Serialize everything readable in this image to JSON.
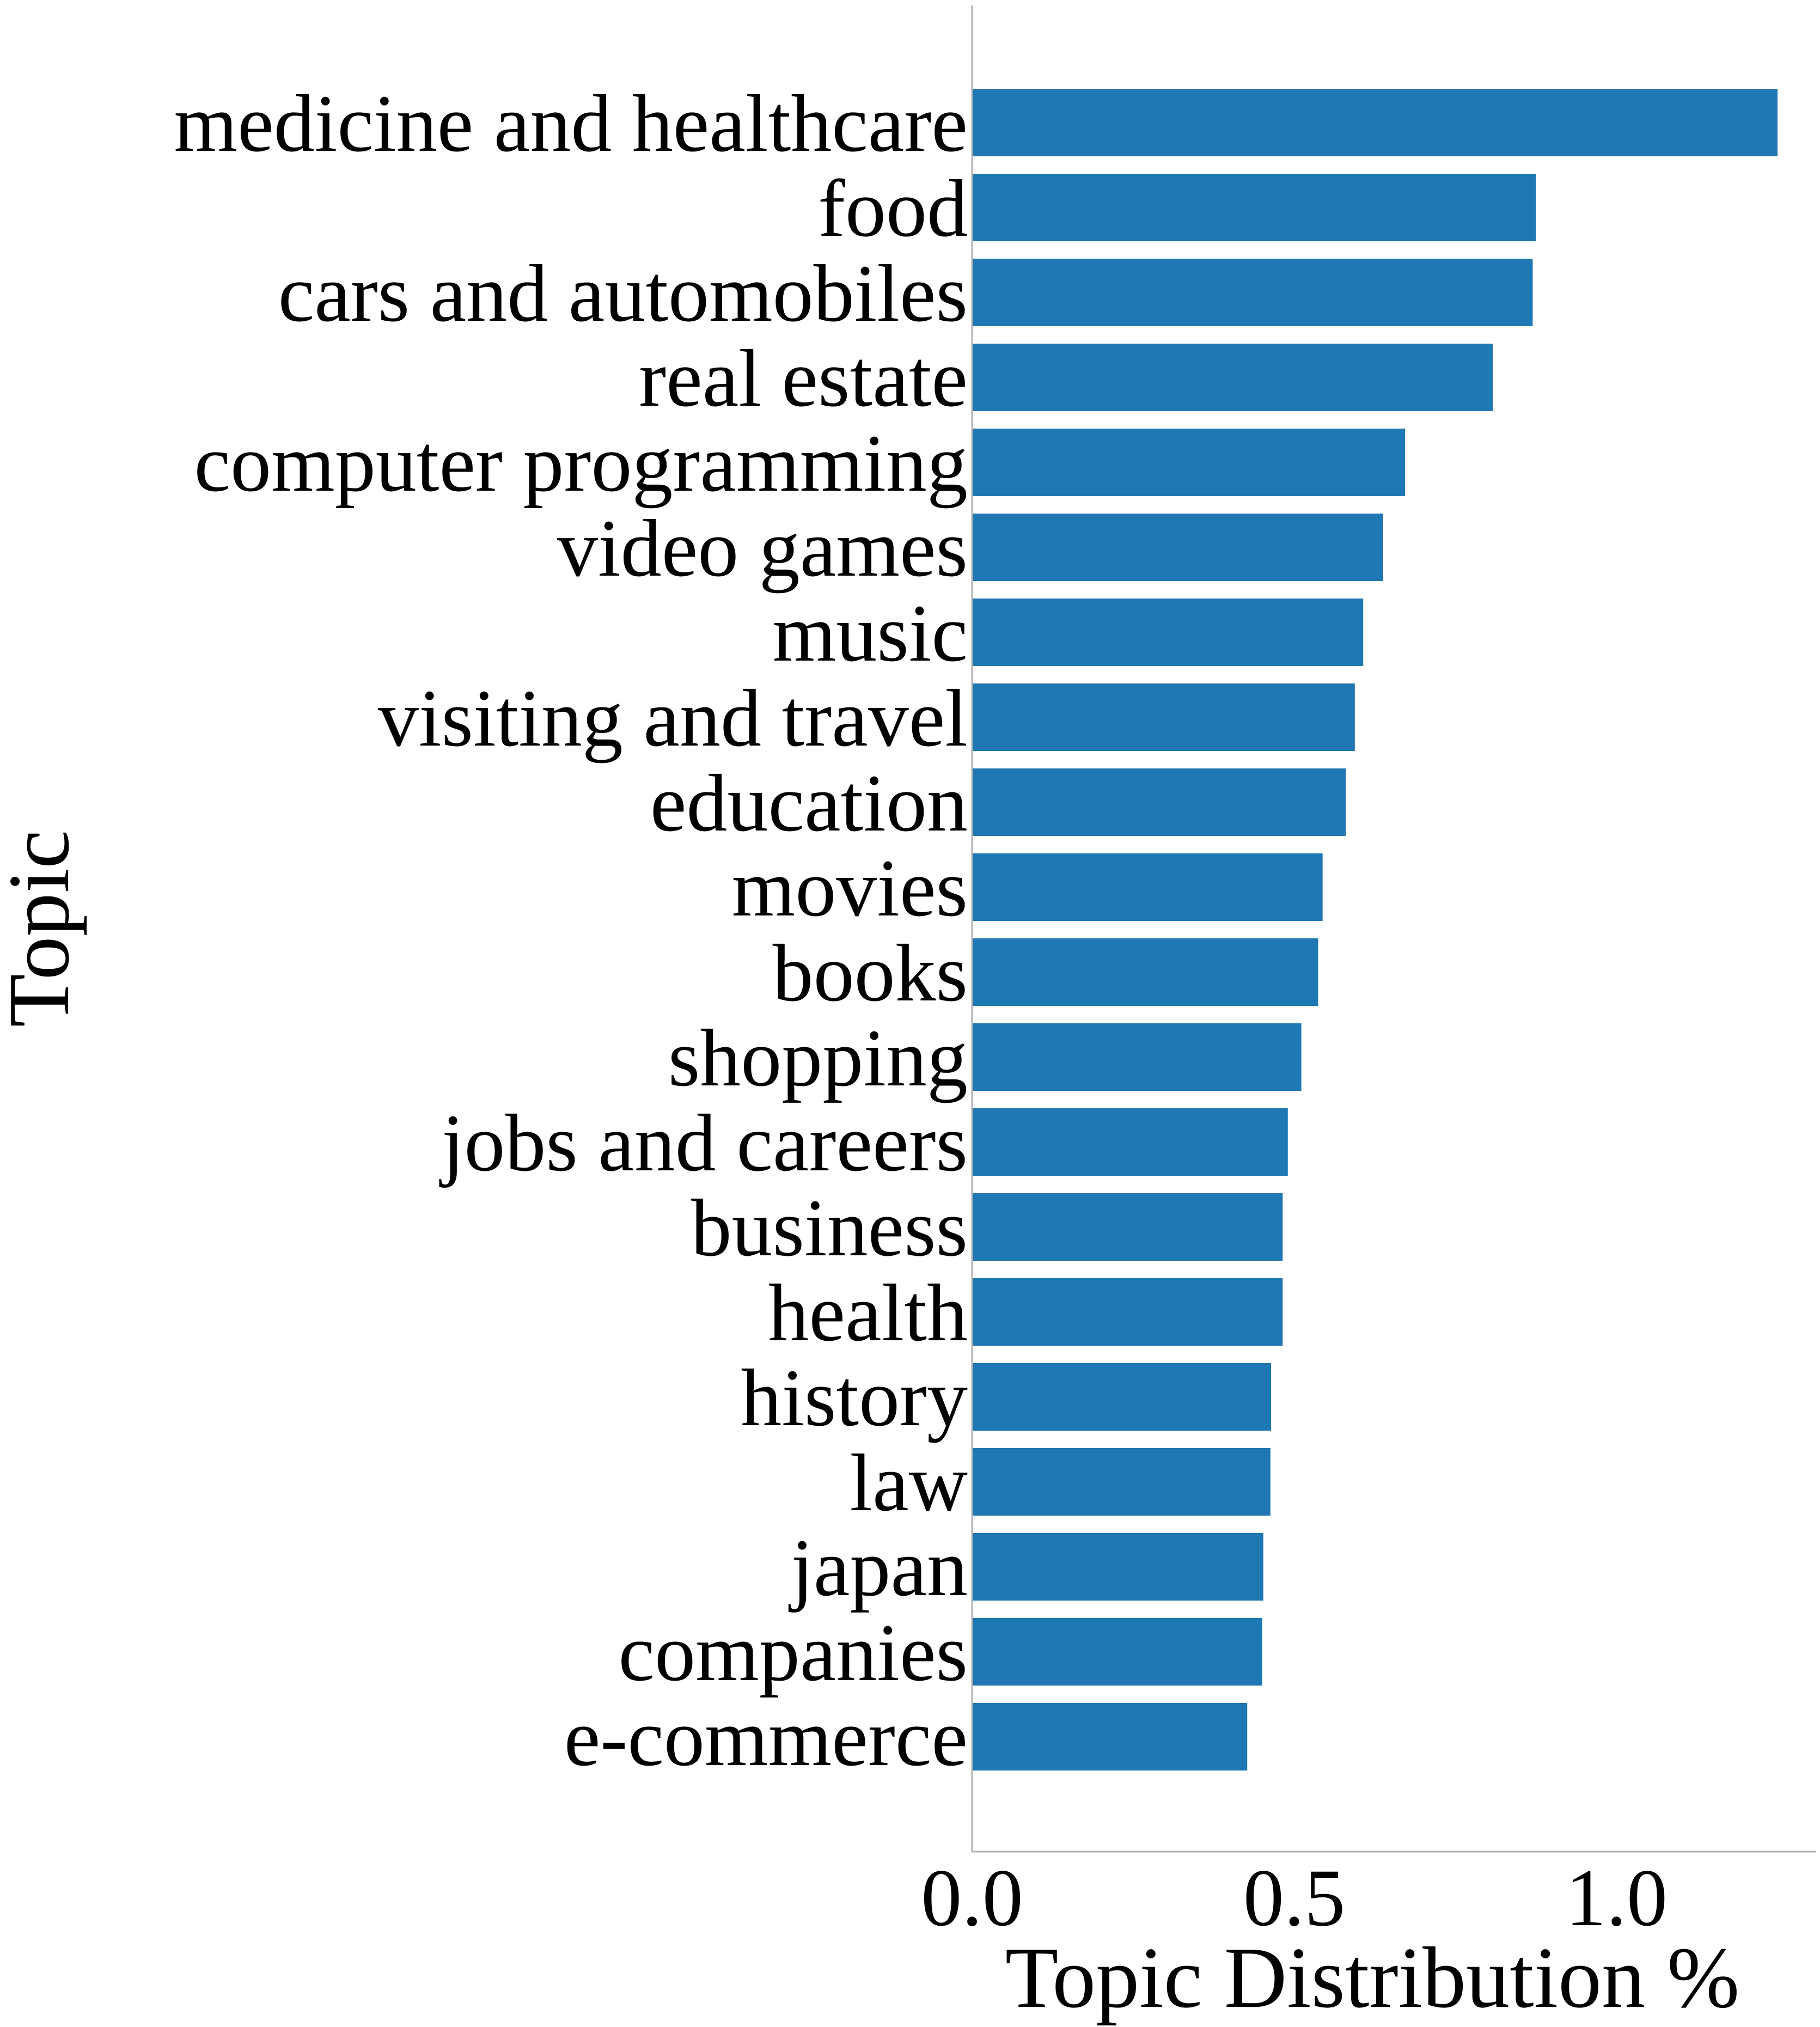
{
  "chart_data": {
    "type": "bar",
    "orientation": "horizontal",
    "categories": [
      "medicine and healthcare",
      "food",
      "cars and automobiles",
      "real estate",
      "computer programming",
      "video games",
      "music",
      "visiting and travel",
      "education",
      "movies",
      "books",
      "shopping",
      "jobs and careers",
      "business",
      "health",
      "history",
      "law",
      "japan",
      "companies",
      "e-commerce"
    ],
    "values": [
      1.25,
      0.875,
      0.87,
      0.808,
      0.672,
      0.638,
      0.607,
      0.594,
      0.58,
      0.544,
      0.537,
      0.511,
      0.49,
      0.482,
      0.482,
      0.464,
      0.463,
      0.452,
      0.45,
      0.427
    ],
    "xlabel": "Topic Distribution %",
    "ylabel": "Topic",
    "title": "",
    "xlim": [
      0,
      1.31
    ],
    "xticks": [
      "0.0",
      "0.5",
      "1.0"
    ],
    "bar_color": "#1f77b4",
    "grid": false,
    "legend": "none"
  }
}
